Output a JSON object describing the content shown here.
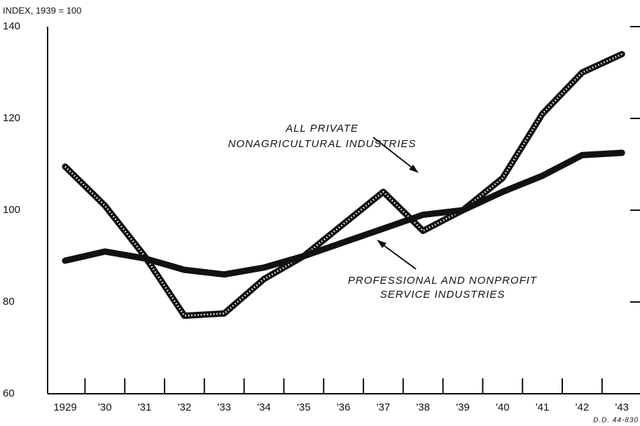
{
  "chart_data": {
    "type": "line",
    "ylabel": "INDEX, 1939 = 100",
    "categories": [
      "1929",
      "'30",
      "'31",
      "'32",
      "'33",
      "'34",
      "'35",
      "'36",
      "'37",
      "'38",
      "'39",
      "'40",
      "'41",
      "'42",
      "'43"
    ],
    "series": [
      {
        "name_lines": [
          "ALL PRIVATE",
          "NONAGRICULTURAL INDUSTRIES"
        ],
        "color": "#111111",
        "style": "dotted",
        "values": [
          109.5,
          101,
          90,
          77,
          77.5,
          85,
          90,
          97,
          104,
          95.5,
          100,
          107,
          121,
          130,
          134
        ]
      },
      {
        "name_lines": [
          "PROFESSIONAL AND NONPROFIT",
          "SERVICE INDUSTRIES"
        ],
        "color": "#111111",
        "style": "solid",
        "values": [
          89,
          91,
          89.5,
          87,
          86,
          87.5,
          90,
          93,
          96,
          99,
          100,
          104,
          107.5,
          112,
          112.5
        ]
      }
    ],
    "ylim": [
      60,
      140
    ],
    "yticks": [
      60,
      80,
      100,
      120,
      140
    ],
    "grid": false,
    "footnote": "D.D. 44-830"
  }
}
